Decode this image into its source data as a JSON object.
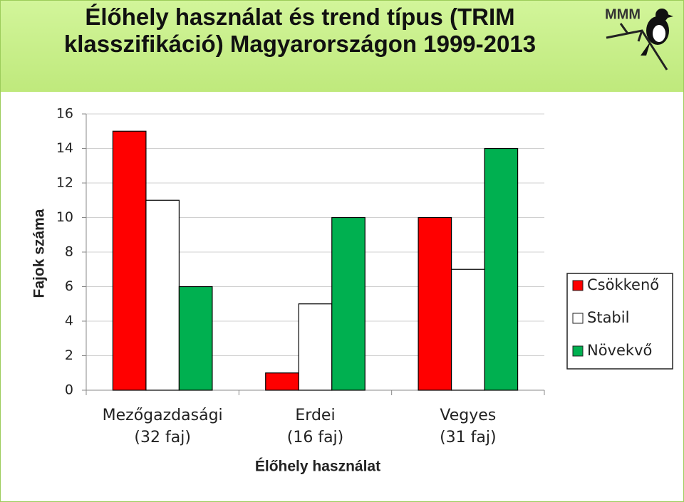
{
  "logo": "MMM",
  "chart_data": {
    "type": "bar",
    "title": "Élőhely használat és trend típus (TRIM klasszifikáció) Magyarországon 1999-2013",
    "y_label": "Fajok száma",
    "x_label": "Élőhely használat",
    "categories": [
      "Mezőgazdasági\n(32 faj)",
      "Erdei\n(16 faj)",
      "Vegyes\n(31 faj)"
    ],
    "series": [
      {
        "name": "Csökkenő",
        "color": "#ff0000",
        "values": [
          15,
          1,
          10
        ]
      },
      {
        "name": "Stabil",
        "color": "#ffffff",
        "values": [
          11,
          5,
          7
        ]
      },
      {
        "name": "Növekvő",
        "color": "#00b050",
        "values": [
          6,
          10,
          14
        ]
      }
    ],
    "ylim": [
      0,
      16
    ],
    "yticks": [
      0,
      2,
      4,
      6,
      8,
      10,
      12,
      14,
      16
    ],
    "grid": true,
    "legend": "right"
  }
}
